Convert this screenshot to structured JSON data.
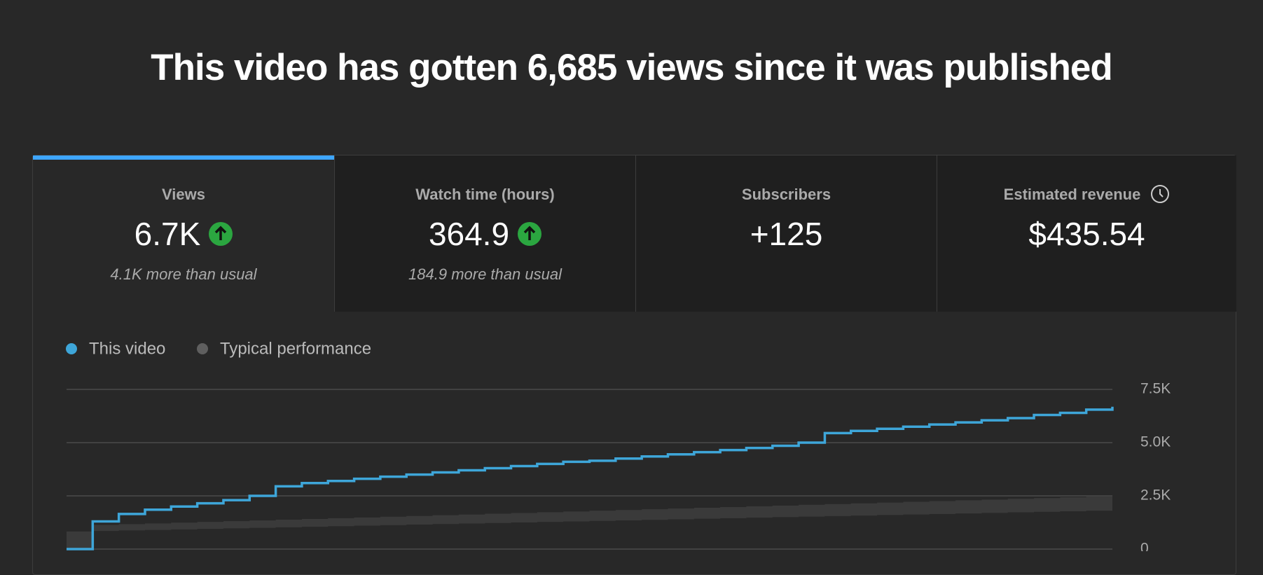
{
  "header": {
    "title": "This video has gotten 6,685 views since it was published"
  },
  "metrics": [
    {
      "label": "Views",
      "value": "6.7K",
      "note": "4.1K more than usual"
    },
    {
      "label": "Watch time (hours)",
      "value": "364.9",
      "note": "184.9 more than usual"
    },
    {
      "label": "Subscribers",
      "value": "+125"
    },
    {
      "label": "Estimated revenue",
      "value": "$435.54"
    }
  ],
  "chart_data": {
    "type": "line",
    "categories": [
      null,
      null,
      null,
      null,
      null,
      null,
      null,
      null,
      null,
      null,
      null,
      null,
      null,
      null,
      null,
      null,
      null,
      null,
      null,
      null,
      null,
      null,
      null,
      null,
      null,
      null,
      null,
      null,
      null,
      null,
      null,
      null,
      null,
      null,
      null,
      null,
      null,
      null,
      null,
      null,
      null
    ],
    "series": [
      {
        "name": "This video",
        "color": "#3ea6d9",
        "values": [
          0,
          1300,
          1650,
          1850,
          2000,
          2150,
          2300,
          2500,
          2950,
          3100,
          3200,
          3300,
          3400,
          3500,
          3600,
          3700,
          3800,
          3900,
          4000,
          4100,
          4150,
          4250,
          4350,
          4450,
          4550,
          4650,
          4750,
          4850,
          5000,
          5450,
          5550,
          5650,
          5750,
          5850,
          5950,
          6050,
          6150,
          6300,
          6400,
          6550,
          6685
        ]
      },
      {
        "name": "Typical performance",
        "color": "#5f5f5f",
        "band_color": "#3a3a3a",
        "values": [
          0,
          1135,
          1170,
          1205,
          1240,
          1275,
          1310,
          1345,
          1380,
          1415,
          1450,
          1485,
          1520,
          1555,
          1590,
          1625,
          1660,
          1695,
          1730,
          1765,
          1800,
          1835,
          1870,
          1905,
          1940,
          1975,
          2010,
          2045,
          2080,
          2115,
          2150,
          2185,
          2220,
          2255,
          2290,
          2325,
          2360,
          2395,
          2430,
          2465,
          2500
        ],
        "lower": [
          0,
          825,
          850,
          875,
          900,
          925,
          950,
          975,
          1000,
          1025,
          1050,
          1075,
          1100,
          1125,
          1150,
          1175,
          1200,
          1225,
          1250,
          1275,
          1300,
          1325,
          1350,
          1375,
          1400,
          1425,
          1450,
          1475,
          1500,
          1525,
          1550,
          1575,
          1600,
          1625,
          1650,
          1675,
          1700,
          1725,
          1750,
          1775,
          1800
        ]
      }
    ],
    "ylim": [
      0,
      7500
    ],
    "yticks": [
      {
        "value": 0,
        "label": "0"
      },
      {
        "value": 2500,
        "label": "2.5K"
      },
      {
        "value": 5000,
        "label": "5.0K"
      },
      {
        "value": 7500,
        "label": "7.5K"
      }
    ],
    "grid": true
  }
}
